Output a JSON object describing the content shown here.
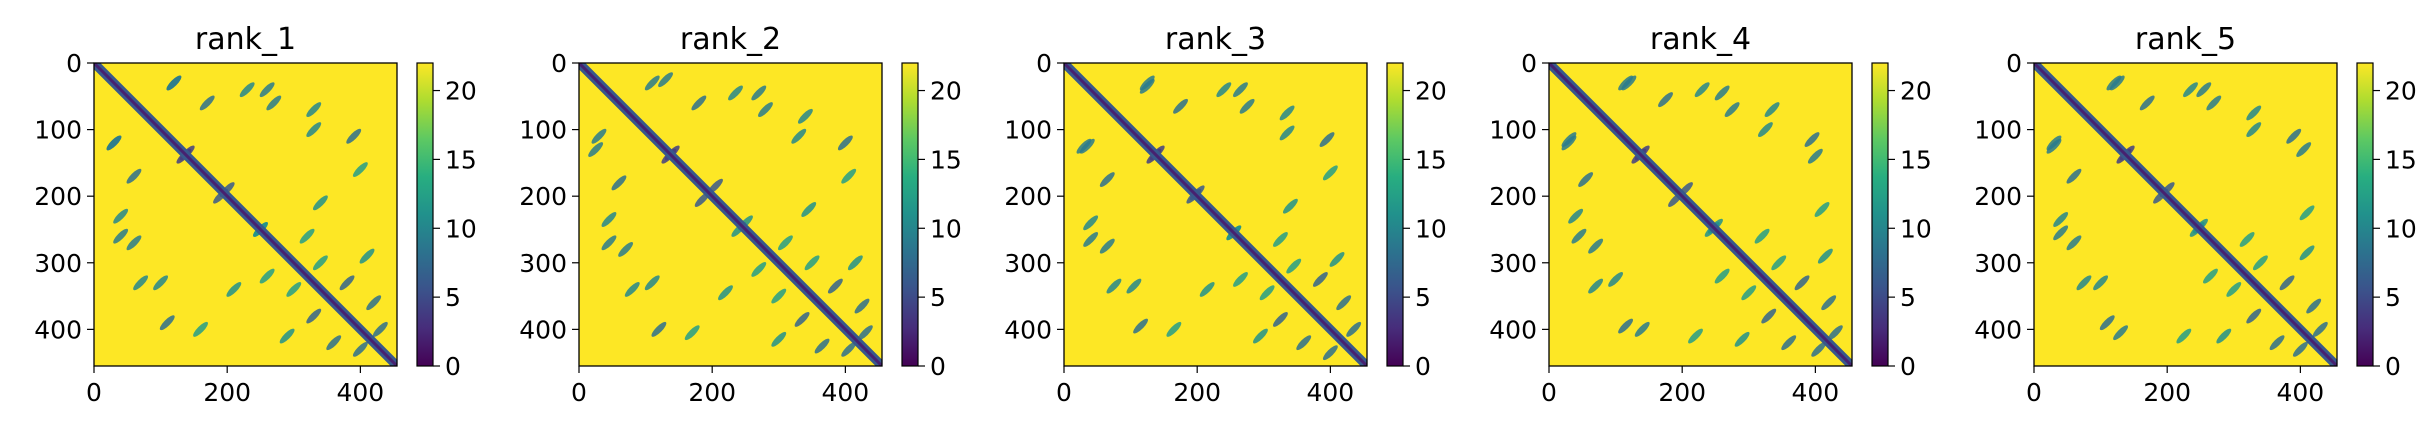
{
  "chart_data": [
    {
      "type": "heatmap",
      "title": "rank_1",
      "xlim": [
        0,
        455
      ],
      "ylim": [
        455,
        0
      ],
      "xticks": [
        0,
        200,
        400
      ],
      "yticks": [
        0,
        100,
        200,
        300,
        400
      ],
      "colorbar": {
        "min": 0,
        "max": 22,
        "ticks": [
          0,
          5,
          10,
          15,
          20
        ],
        "colormap": "viridis"
      },
      "diagonal_bands": [
        [
          40,
          455,
          0
        ]
      ],
      "contact_features": [
        {
          "x": 120,
          "y": 30,
          "v": 9
        },
        {
          "x": 170,
          "y": 60,
          "v": 8
        },
        {
          "x": 260,
          "y": 40,
          "v": 9
        },
        {
          "x": 330,
          "y": 70,
          "v": 10
        },
        {
          "x": 390,
          "y": 110,
          "v": 8
        },
        {
          "x": 30,
          "y": 120,
          "v": 9
        },
        {
          "x": 140,
          "y": 135,
          "v": 4
        },
        {
          "x": 190,
          "y": 200,
          "v": 6
        },
        {
          "x": 40,
          "y": 230,
          "v": 10
        },
        {
          "x": 60,
          "y": 270,
          "v": 9
        },
        {
          "x": 250,
          "y": 250,
          "v": 11
        },
        {
          "x": 320,
          "y": 260,
          "v": 12
        },
        {
          "x": 100,
          "y": 330,
          "v": 10
        },
        {
          "x": 210,
          "y": 340,
          "v": 11
        },
        {
          "x": 380,
          "y": 330,
          "v": 7
        },
        {
          "x": 340,
          "y": 300,
          "v": 12
        },
        {
          "x": 420,
          "y": 360,
          "v": 8
        },
        {
          "x": 160,
          "y": 400,
          "v": 12
        },
        {
          "x": 290,
          "y": 410,
          "v": 11
        },
        {
          "x": 400,
          "y": 430,
          "v": 8
        }
      ]
    },
    {
      "type": "heatmap",
      "title": "rank_2",
      "xlim": [
        0,
        455
      ],
      "ylim": [
        455,
        0
      ],
      "xticks": [
        0,
        200,
        400
      ],
      "yticks": [
        0,
        100,
        200,
        300,
        400
      ],
      "colorbar": {
        "min": 0,
        "max": 22,
        "ticks": [
          0,
          5,
          10,
          15,
          20
        ],
        "colormap": "viridis"
      },
      "diagonal_bands": [
        [
          40,
          455,
          0
        ]
      ],
      "contact_features": [
        {
          "x": 110,
          "y": 30,
          "v": 9
        },
        {
          "x": 180,
          "y": 60,
          "v": 8
        },
        {
          "x": 270,
          "y": 45,
          "v": 9
        },
        {
          "x": 340,
          "y": 80,
          "v": 10
        },
        {
          "x": 400,
          "y": 120,
          "v": 8
        },
        {
          "x": 25,
          "y": 130,
          "v": 9
        },
        {
          "x": 140,
          "y": 135,
          "v": 4
        },
        {
          "x": 185,
          "y": 205,
          "v": 6
        },
        {
          "x": 45,
          "y": 235,
          "v": 10
        },
        {
          "x": 70,
          "y": 280,
          "v": 9
        },
        {
          "x": 240,
          "y": 250,
          "v": 11
        },
        {
          "x": 310,
          "y": 270,
          "v": 12
        },
        {
          "x": 110,
          "y": 330,
          "v": 10
        },
        {
          "x": 220,
          "y": 345,
          "v": 11
        },
        {
          "x": 385,
          "y": 335,
          "v": 7
        },
        {
          "x": 350,
          "y": 300,
          "v": 12
        },
        {
          "x": 425,
          "y": 365,
          "v": 8
        },
        {
          "x": 170,
          "y": 405,
          "v": 12
        },
        {
          "x": 300,
          "y": 415,
          "v": 11
        },
        {
          "x": 405,
          "y": 430,
          "v": 8
        }
      ]
    },
    {
      "type": "heatmap",
      "title": "rank_3",
      "xlim": [
        0,
        455
      ],
      "ylim": [
        455,
        0
      ],
      "xticks": [
        0,
        200,
        400
      ],
      "yticks": [
        0,
        100,
        200,
        300,
        400
      ],
      "colorbar": {
        "min": 0,
        "max": 22,
        "ticks": [
          0,
          5,
          10,
          15,
          20
        ],
        "colormap": "viridis"
      },
      "diagonal_bands": [
        [
          40,
          455,
          0
        ]
      ],
      "contact_features": [
        {
          "x": 125,
          "y": 35,
          "v": 9
        },
        {
          "x": 175,
          "y": 65,
          "v": 8
        },
        {
          "x": 265,
          "y": 40,
          "v": 9
        },
        {
          "x": 335,
          "y": 75,
          "v": 10
        },
        {
          "x": 395,
          "y": 115,
          "v": 8
        },
        {
          "x": 30,
          "y": 125,
          "v": 9
        },
        {
          "x": 140,
          "y": 135,
          "v": 4
        },
        {
          "x": 195,
          "y": 200,
          "v": 6
        },
        {
          "x": 40,
          "y": 240,
          "v": 10
        },
        {
          "x": 65,
          "y": 275,
          "v": 9
        },
        {
          "x": 255,
          "y": 255,
          "v": 11
        },
        {
          "x": 325,
          "y": 265,
          "v": 12
        },
        {
          "x": 105,
          "y": 335,
          "v": 10
        },
        {
          "x": 215,
          "y": 340,
          "v": 11
        },
        {
          "x": 385,
          "y": 325,
          "v": 7
        },
        {
          "x": 345,
          "y": 305,
          "v": 12
        },
        {
          "x": 420,
          "y": 360,
          "v": 8
        },
        {
          "x": 165,
          "y": 400,
          "v": 12
        },
        {
          "x": 295,
          "y": 410,
          "v": 11
        },
        {
          "x": 400,
          "y": 435,
          "v": 8
        }
      ]
    },
    {
      "type": "heatmap",
      "title": "rank_4",
      "xlim": [
        0,
        455
      ],
      "ylim": [
        455,
        0
      ],
      "xticks": [
        0,
        200,
        400
      ],
      "yticks": [
        0,
        100,
        200,
        300,
        400
      ],
      "colorbar": {
        "min": 0,
        "max": 22,
        "ticks": [
          0,
          5,
          10,
          15,
          20
        ],
        "colormap": "viridis"
      },
      "diagonal_bands": [
        [
          40,
          455,
          0
        ]
      ],
      "contact_features": [
        {
          "x": 115,
          "y": 30,
          "v": 9
        },
        {
          "x": 175,
          "y": 55,
          "v": 8
        },
        {
          "x": 260,
          "y": 45,
          "v": 9
        },
        {
          "x": 335,
          "y": 70,
          "v": 10
        },
        {
          "x": 395,
          "y": 115,
          "v": 8
        },
        {
          "x": 30,
          "y": 120,
          "v": 9
        },
        {
          "x": 140,
          "y": 135,
          "v": 4
        },
        {
          "x": 190,
          "y": 205,
          "v": 6
        },
        {
          "x": 40,
          "y": 230,
          "v": 10
        },
        {
          "x": 70,
          "y": 275,
          "v": 9
        },
        {
          "x": 250,
          "y": 245,
          "v": 11
        },
        {
          "x": 320,
          "y": 260,
          "v": 12
        },
        {
          "x": 100,
          "y": 325,
          "v": 10
        },
        {
          "x": 140,
          "y": 400,
          "v": 9
        },
        {
          "x": 380,
          "y": 330,
          "v": 7
        },
        {
          "x": 345,
          "y": 300,
          "v": 12
        },
        {
          "x": 420,
          "y": 360,
          "v": 8
        },
        {
          "x": 220,
          "y": 410,
          "v": 12
        },
        {
          "x": 290,
          "y": 415,
          "v": 11
        },
        {
          "x": 405,
          "y": 430,
          "v": 8
        }
      ]
    },
    {
      "type": "heatmap",
      "title": "rank_5",
      "xlim": [
        0,
        455
      ],
      "ylim": [
        455,
        0
      ],
      "xticks": [
        0,
        200,
        400
      ],
      "yticks": [
        0,
        100,
        200,
        300,
        400
      ],
      "colorbar": {
        "min": 0,
        "max": 22,
        "ticks": [
          0,
          5,
          10,
          15,
          20
        ],
        "colormap": "viridis"
      },
      "diagonal_bands": [
        [
          40,
          455,
          0
        ]
      ],
      "contact_features": [
        {
          "x": 120,
          "y": 30,
          "v": 9
        },
        {
          "x": 170,
          "y": 60,
          "v": 8
        },
        {
          "x": 255,
          "y": 40,
          "v": 9
        },
        {
          "x": 330,
          "y": 75,
          "v": 10
        },
        {
          "x": 390,
          "y": 110,
          "v": 8
        },
        {
          "x": 30,
          "y": 125,
          "v": 9
        },
        {
          "x": 140,
          "y": 135,
          "v": 4
        },
        {
          "x": 190,
          "y": 200,
          "v": 6
        },
        {
          "x": 40,
          "y": 235,
          "v": 10
        },
        {
          "x": 60,
          "y": 270,
          "v": 9
        },
        {
          "x": 245,
          "y": 250,
          "v": 11
        },
        {
          "x": 320,
          "y": 265,
          "v": 12
        },
        {
          "x": 100,
          "y": 330,
          "v": 10
        },
        {
          "x": 130,
          "y": 405,
          "v": 9
        },
        {
          "x": 380,
          "y": 330,
          "v": 7
        },
        {
          "x": 340,
          "y": 300,
          "v": 12
        },
        {
          "x": 420,
          "y": 365,
          "v": 8
        },
        {
          "x": 225,
          "y": 410,
          "v": 12
        },
        {
          "x": 285,
          "y": 410,
          "v": 11
        },
        {
          "x": 400,
          "y": 430,
          "v": 8
        }
      ]
    }
  ]
}
